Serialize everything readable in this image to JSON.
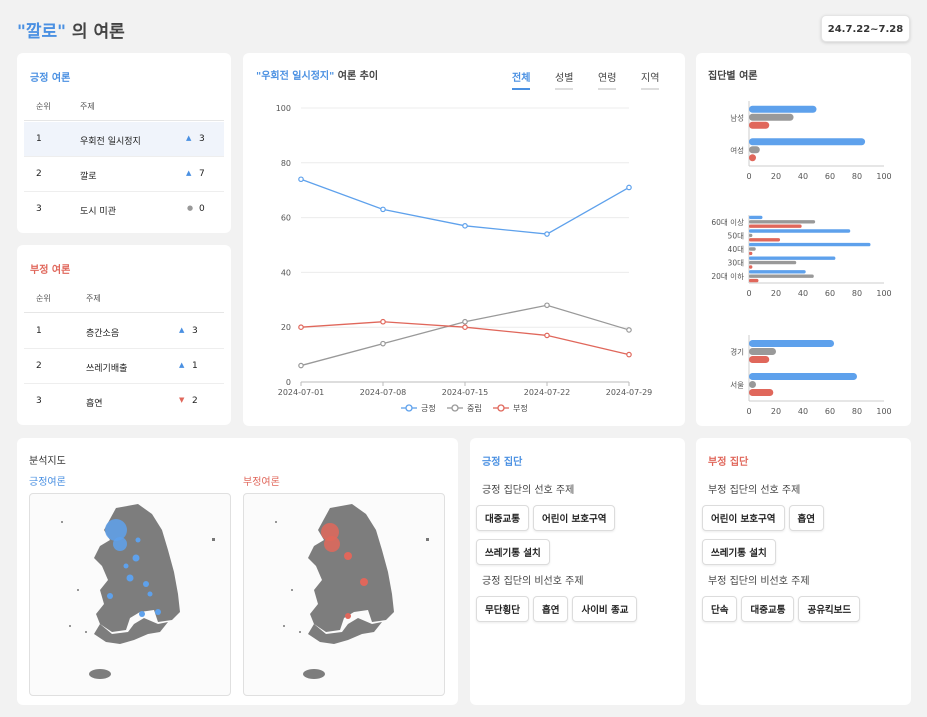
{
  "header": {
    "title_quote": "\"깔로\"",
    "title_rest": " 의 여론",
    "date_range": "24.7.22~7.28"
  },
  "positive_rank": {
    "title": "긍정 여론",
    "col_rank": "순위",
    "col_topic": "주제",
    "rows": [
      {
        "rank": "1",
        "topic": "우회전 일시정지",
        "change": "3",
        "dir": "up"
      },
      {
        "rank": "2",
        "topic": "깔로",
        "change": "7",
        "dir": "up"
      },
      {
        "rank": "3",
        "topic": "도시 미관",
        "change": "0",
        "dir": "same"
      }
    ]
  },
  "negative_rank": {
    "title": "부정 여론",
    "col_rank": "순위",
    "col_topic": "주제",
    "rows": [
      {
        "rank": "1",
        "topic": "층간소음",
        "change": "3",
        "dir": "up"
      },
      {
        "rank": "2",
        "topic": "쓰레기배출",
        "change": "1",
        "dir": "up"
      },
      {
        "rank": "3",
        "topic": "흡연",
        "change": "2",
        "dir": "down"
      }
    ]
  },
  "trend": {
    "title_quote": "\"우회전 일시정지\"",
    "title_rest": " 여론 추이",
    "tabs": [
      "전체",
      "성별",
      "연령",
      "지역"
    ],
    "active_tab": 0
  },
  "group_panel": {
    "title": "집단별 여론"
  },
  "colors": {
    "positive": "#5ea1ec",
    "neutral": "#999999",
    "negative": "#e0675b",
    "accent": "#4a90e2"
  },
  "chart_data": [
    {
      "type": "line",
      "x": [
        "2024-07-01",
        "2024-07-08",
        "2024-07-15",
        "2024-07-22",
        "2024-07-29"
      ],
      "series": [
        {
          "name": "긍정",
          "values": [
            74,
            63,
            57,
            54,
            71
          ]
        },
        {
          "name": "중립",
          "values": [
            6,
            14,
            22,
            28,
            19
          ]
        },
        {
          "name": "부정",
          "values": [
            20,
            22,
            20,
            17,
            10
          ]
        }
      ],
      "ylim": [
        0,
        100
      ],
      "yticks": [
        0,
        20,
        40,
        60,
        80,
        100
      ],
      "grid": true,
      "legend": "bottom"
    },
    {
      "type": "bar",
      "orientation": "horizontal",
      "categories": [
        "남성",
        "여성"
      ],
      "series": [
        {
          "name": "긍정",
          "values": [
            50,
            86
          ]
        },
        {
          "name": "중립",
          "values": [
            33,
            8
          ]
        },
        {
          "name": "부정",
          "values": [
            15,
            3
          ]
        }
      ],
      "xlim": [
        0,
        100
      ],
      "xticks": [
        0,
        20,
        40,
        60,
        80,
        100
      ]
    },
    {
      "type": "bar",
      "orientation": "horizontal",
      "categories": [
        "60대 이상",
        "50대",
        "40대",
        "30대",
        "20대 이하"
      ],
      "series": [
        {
          "name": "긍정",
          "values": [
            10,
            75,
            90,
            64,
            42
          ]
        },
        {
          "name": "중립",
          "values": [
            49,
            2,
            5,
            35,
            48
          ]
        },
        {
          "name": "부정",
          "values": [
            39,
            23,
            0,
            0,
            7
          ]
        }
      ],
      "xlim": [
        0,
        100
      ],
      "xticks": [
        0,
        20,
        40,
        60,
        80,
        100
      ]
    },
    {
      "type": "bar",
      "orientation": "horizontal",
      "categories": [
        "경기",
        "서울"
      ],
      "series": [
        {
          "name": "긍정",
          "values": [
            63,
            80
          ]
        },
        {
          "name": "중립",
          "values": [
            20,
            1
          ]
        },
        {
          "name": "부정",
          "values": [
            15,
            18
          ]
        }
      ],
      "xlim": [
        0,
        100
      ],
      "xticks": [
        0,
        20,
        40,
        60,
        80,
        100
      ]
    }
  ],
  "analysis_map": {
    "title": "분석지도",
    "positive_label": "긍정여론",
    "negative_label": "부정여론"
  },
  "positive_group": {
    "title": "긍정 집단",
    "preferred_title": "긍정 집단의 선호 주제",
    "preferred": [
      "대중교통",
      "어린이 보호구역",
      "쓰레기통 설치"
    ],
    "nonpreferred_title": "긍정 집단의 비선호 주제",
    "nonpreferred": [
      "무단횡단",
      "흡연",
      "사이비 종교"
    ]
  },
  "negative_group": {
    "title": "부정 집단",
    "preferred_title": "부정 집단의 선호 주제",
    "preferred": [
      "어린이 보호구역",
      "흡연",
      "쓰레기통 설치"
    ],
    "nonpreferred_title": "부정 집단의 비선호 주제",
    "nonpreferred": [
      "단속",
      "대중교통",
      "공유킥보드"
    ]
  }
}
